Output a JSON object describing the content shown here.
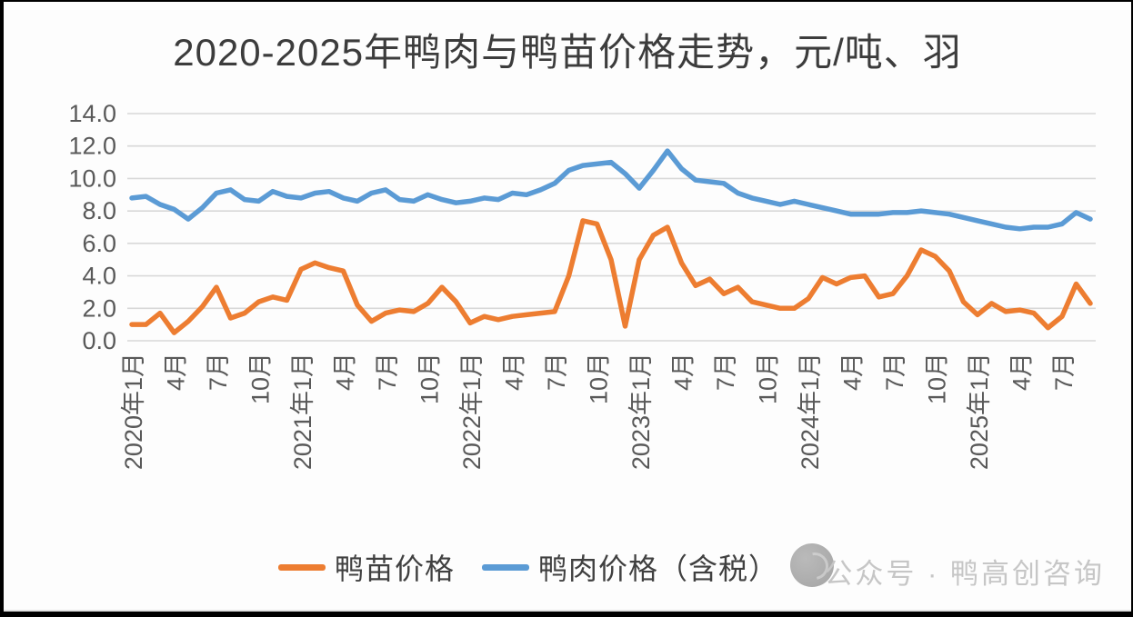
{
  "watermark": "公众号 · 鸭高创咨询",
  "chart_data": {
    "type": "line",
    "title": "2020-2025年鸭肉与鸭苗价格走势，元/吨、羽",
    "x_unit": "month",
    "n_points": 69,
    "x_start_label": "2020年1月",
    "x_end_month": "2025年9月",
    "x_tick_labels": [
      "2020年1月",
      "4月",
      "7月",
      "10月",
      "2021年1月",
      "4月",
      "7月",
      "10月",
      "2022年1月",
      "4月",
      "7月",
      "10月",
      "2023年1月",
      "4月",
      "7月",
      "10月",
      "2024年1月",
      "4月",
      "7月",
      "10月",
      "2025年1月",
      "4月",
      "7月"
    ],
    "x_tick_step_months": 3,
    "ylim": [
      0,
      14
    ],
    "y_ticks": [
      0,
      2,
      4,
      6,
      8,
      10,
      12,
      14
    ],
    "y_tick_labels": [
      "0.0",
      "2.0",
      "4.0",
      "6.0",
      "8.0",
      "10.0",
      "12.0",
      "14.0"
    ],
    "grid": "horizontal",
    "grid_color": "#d8d8d8",
    "axis_text_color": "#595959",
    "legend_position": "bottom",
    "series": [
      {
        "name": "鸭苗价格",
        "color": "#ED7D31",
        "values": [
          1.0,
          1.0,
          1.7,
          0.5,
          1.2,
          2.1,
          3.3,
          1.4,
          1.7,
          2.4,
          2.7,
          2.5,
          4.4,
          4.8,
          4.5,
          4.3,
          2.2,
          1.2,
          1.7,
          1.9,
          1.8,
          2.3,
          3.3,
          2.4,
          1.1,
          1.5,
          1.3,
          1.5,
          1.6,
          1.7,
          1.8,
          4.0,
          7.4,
          7.2,
          5.0,
          0.9,
          5.0,
          6.5,
          7.0,
          4.8,
          3.4,
          3.8,
          2.9,
          3.3,
          2.4,
          2.2,
          2.0,
          2.0,
          2.6,
          3.9,
          3.5,
          3.9,
          4.0,
          2.7,
          2.9,
          4.0,
          5.6,
          5.2,
          4.3,
          2.4,
          1.6,
          2.3,
          1.8,
          1.9,
          1.7,
          0.8,
          1.5,
          3.5,
          2.3
        ]
      },
      {
        "name": "鸭肉价格（含税）",
        "color": "#5B9BD5",
        "values": [
          8.8,
          8.9,
          8.4,
          8.1,
          7.5,
          8.2,
          9.1,
          9.3,
          8.7,
          8.6,
          9.2,
          8.9,
          8.8,
          9.1,
          9.2,
          8.8,
          8.6,
          9.1,
          9.3,
          8.7,
          8.6,
          9.0,
          8.7,
          8.5,
          8.6,
          8.8,
          8.7,
          9.1,
          9.0,
          9.3,
          9.7,
          10.5,
          10.8,
          10.9,
          11.0,
          10.3,
          9.4,
          10.5,
          11.7,
          10.6,
          9.9,
          9.8,
          9.7,
          9.1,
          8.8,
          8.6,
          8.4,
          8.6,
          8.4,
          8.2,
          8.0,
          7.8,
          7.8,
          7.8,
          7.9,
          7.9,
          8.0,
          7.9,
          7.8,
          7.6,
          7.4,
          7.2,
          7.0,
          6.9,
          7.0,
          7.0,
          7.2,
          7.9,
          7.5
        ]
      }
    ]
  }
}
